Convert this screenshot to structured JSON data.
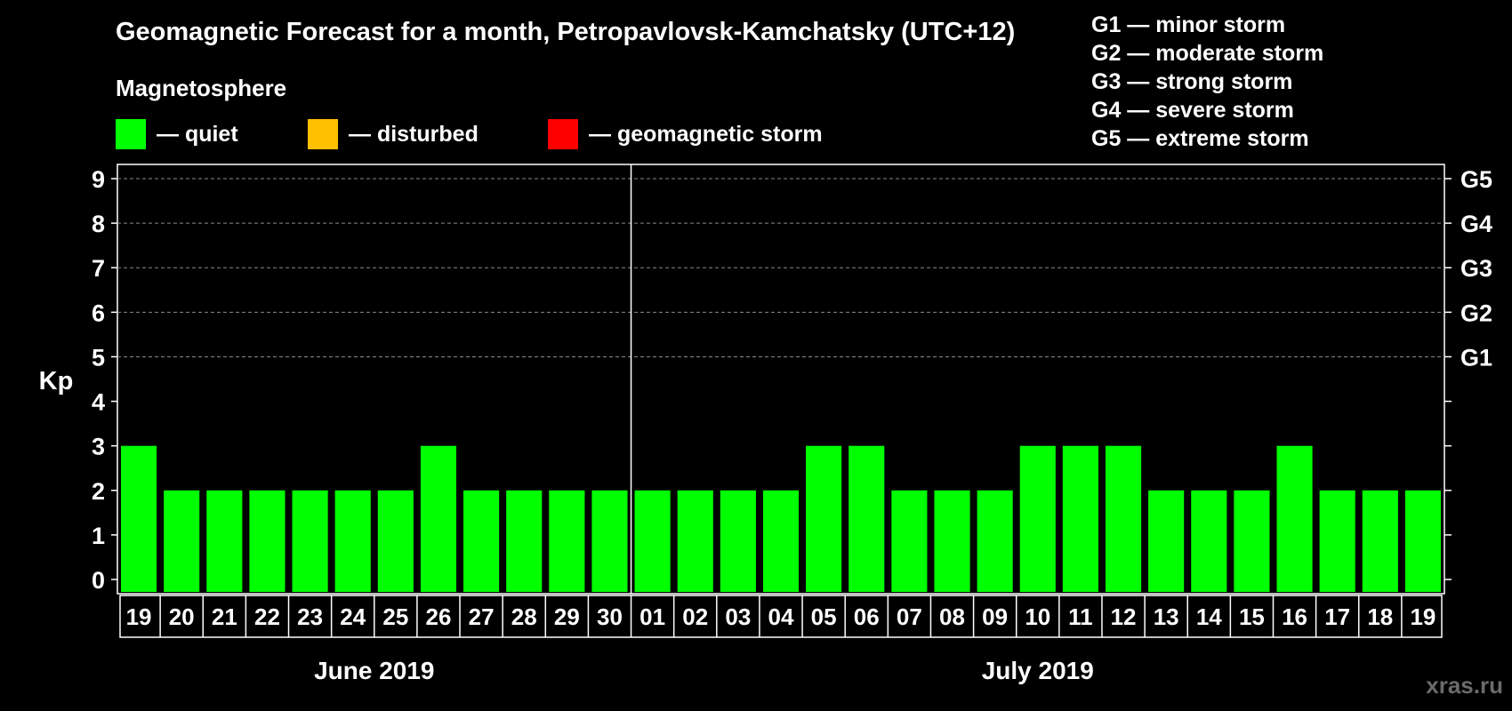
{
  "chart_data": {
    "type": "bar",
    "title": "Geomagnetic Forecast for a month, Petropavlovsk-Kamchatsky (UTC+12)",
    "subtitle": "Magnetosphere",
    "legend": [
      {
        "color": "#00ff00",
        "label": "— quiet"
      },
      {
        "color": "#ffc000",
        "label": "— disturbed"
      },
      {
        "color": "#ff0000",
        "label": "— geomagnetic storm"
      }
    ],
    "storm_scale": [
      "G1 — minor storm",
      "G2 — moderate storm",
      "G3 — strong storm",
      "G4 — severe storm",
      "G5 — extreme storm"
    ],
    "ylabel": "Kp",
    "ylim": [
      0,
      9
    ],
    "yticks": [
      "0",
      "1",
      "2",
      "3",
      "4",
      "5",
      "6",
      "7",
      "8",
      "9"
    ],
    "right_ticks": [
      {
        "value": 5,
        "label": "G1"
      },
      {
        "value": 6,
        "label": "G2"
      },
      {
        "value": 7,
        "label": "G3"
      },
      {
        "value": 8,
        "label": "G4"
      },
      {
        "value": 9,
        "label": "G5"
      }
    ],
    "grid": "horizontal dashed at Kp 5–9",
    "categories": [
      "19",
      "20",
      "21",
      "22",
      "23",
      "24",
      "25",
      "26",
      "27",
      "28",
      "29",
      "30",
      "01",
      "02",
      "03",
      "04",
      "05",
      "06",
      "07",
      "08",
      "09",
      "10",
      "11",
      "12",
      "13",
      "14",
      "15",
      "16",
      "17",
      "18",
      "19"
    ],
    "values": [
      3,
      2,
      2,
      2,
      2,
      2,
      2,
      3,
      2,
      2,
      2,
      2,
      2,
      2,
      2,
      2,
      3,
      3,
      2,
      2,
      2,
      3,
      3,
      3,
      2,
      2,
      2,
      3,
      2,
      2,
      2
    ],
    "bar_color": "#00ff00",
    "months": [
      {
        "label": "June 2019",
        "start": 0,
        "count": 12
      },
      {
        "label": "July 2019",
        "start": 12,
        "count": 19
      }
    ]
  },
  "watermark": "xras.ru"
}
